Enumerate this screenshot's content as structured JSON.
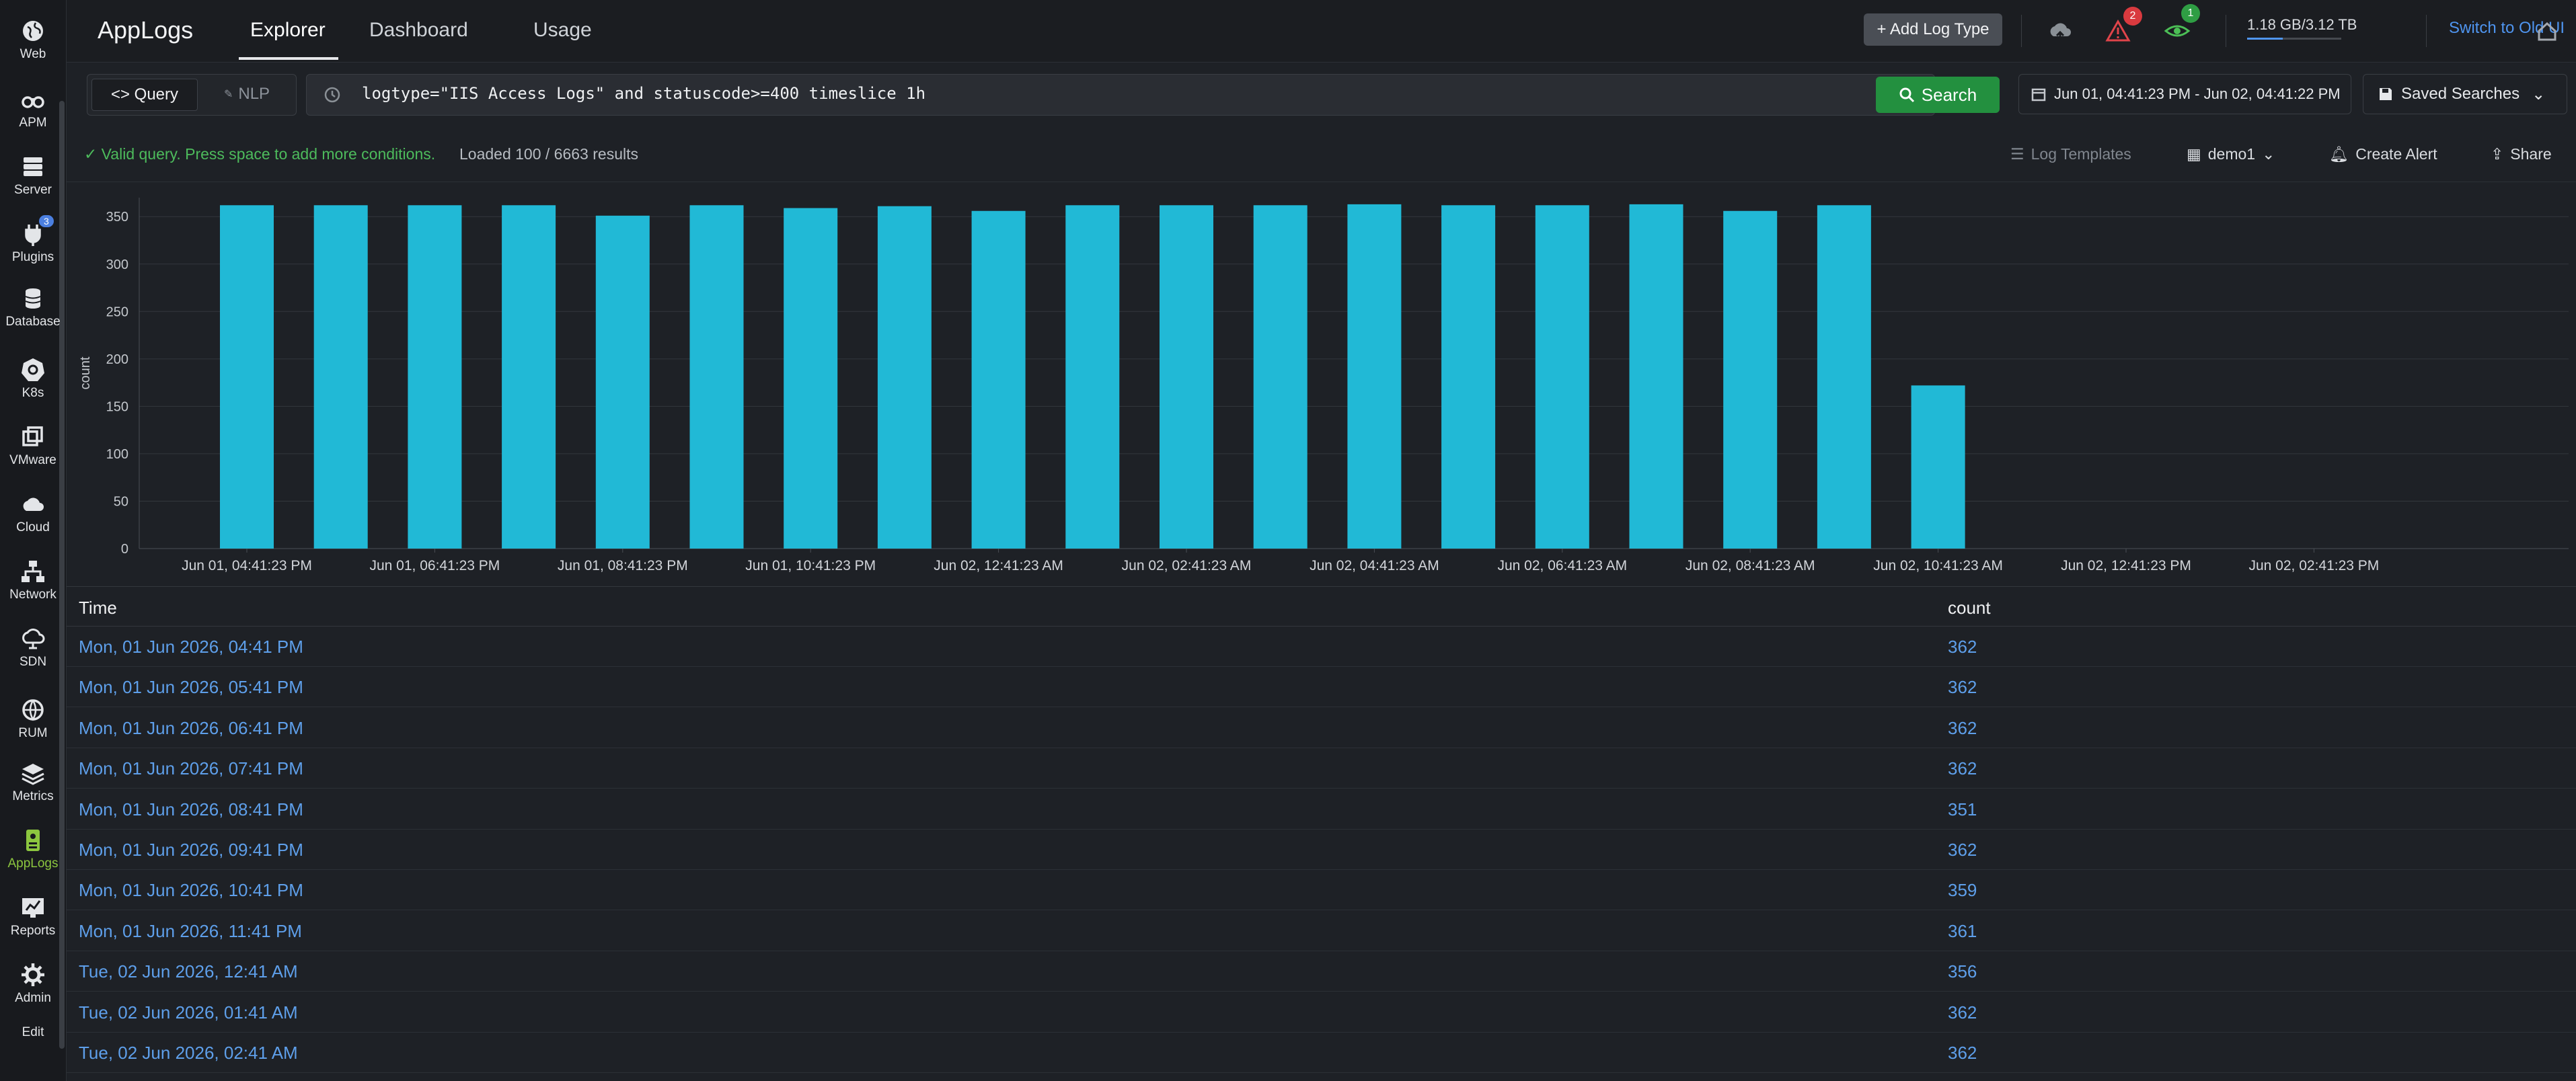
{
  "sidebar": {
    "items": [
      {
        "label": "Web",
        "icon": "globe-icon"
      },
      {
        "label": "APM",
        "icon": "binoculars-icon"
      },
      {
        "label": "Server",
        "icon": "server-icon"
      },
      {
        "label": "Plugins",
        "icon": "plug-icon",
        "badge": "3"
      },
      {
        "label": "Database",
        "icon": "database-icon"
      },
      {
        "label": "K8s",
        "icon": "kubernetes-icon"
      },
      {
        "label": "VMware",
        "icon": "vmware-icon"
      },
      {
        "label": "Cloud",
        "icon": "cloud-icon"
      },
      {
        "label": "Network",
        "icon": "network-icon"
      },
      {
        "label": "SDN",
        "icon": "sdn-cloud-icon"
      },
      {
        "label": "RUM",
        "icon": "rum-globe-icon"
      },
      {
        "label": "Metrics",
        "icon": "layers-icon"
      },
      {
        "label": "AppLogs",
        "icon": "applogs-icon",
        "active": true
      },
      {
        "label": "Reports",
        "icon": "reports-icon"
      },
      {
        "label": "Admin",
        "icon": "gear-icon"
      },
      {
        "label": "Edit"
      }
    ]
  },
  "header": {
    "title": "AppLogs",
    "tabs": [
      {
        "label": "Explorer",
        "active": true
      },
      {
        "label": "Dashboard"
      },
      {
        "label": "Usage"
      }
    ],
    "add_log_type": "+ Add Log Type",
    "alerts_badge": "2",
    "watch_badge": "1",
    "storage": "1.18 GB/3.12 TB",
    "storage_fraction": 0.38,
    "switch_old_ui": "Switch to Old UI"
  },
  "query": {
    "mode_query": "<> Query",
    "mode_nlp": "NLP",
    "text": "logtype=\"IIS Access Logs\" and statuscode>=400 timeslice 1h",
    "search_label": "Search",
    "date_range": "Jun 01, 04:41:23 PM - Jun 02, 04:41:22 PM",
    "saved_searches": "Saved Searches"
  },
  "status": {
    "valid_msg": "Valid query. Press space to add more conditions.",
    "loaded": "Loaded 100 / 6663 results",
    "log_templates": "Log Templates",
    "workspace": "demo1",
    "create_alert": "Create Alert",
    "share": "Share"
  },
  "colors": {
    "bar": "#21b9d6",
    "link": "#5e9fea",
    "accent": "#23903f"
  },
  "chart_data": {
    "type": "bar",
    "ylabel": "count",
    "ylim": [
      0,
      370
    ],
    "yticks": [
      0,
      50,
      100,
      150,
      200,
      250,
      300,
      350
    ],
    "grid": true,
    "xtick_labels": [
      "Jun 01, 04:41:23 PM",
      "Jun 01, 06:41:23 PM",
      "Jun 01, 08:41:23 PM",
      "Jun 01, 10:41:23 PM",
      "Jun 02, 12:41:23 AM",
      "Jun 02, 02:41:23 AM",
      "Jun 02, 04:41:23 AM",
      "Jun 02, 06:41:23 AM",
      "Jun 02, 08:41:23 AM",
      "Jun 02, 10:41:23 AM",
      "Jun 02, 12:41:23 PM",
      "Jun 02, 02:41:23 PM"
    ],
    "hours_span": 26,
    "values": [
      362,
      362,
      362,
      362,
      351,
      362,
      359,
      361,
      356,
      362,
      362,
      362,
      363,
      362,
      362,
      363,
      356,
      362,
      172
    ]
  },
  "table": {
    "columns": [
      "Time",
      "count"
    ],
    "rows": [
      [
        "Mon, 01 Jun 2026, 04:41 PM",
        "362"
      ],
      [
        "Mon, 01 Jun 2026, 05:41 PM",
        "362"
      ],
      [
        "Mon, 01 Jun 2026, 06:41 PM",
        "362"
      ],
      [
        "Mon, 01 Jun 2026, 07:41 PM",
        "362"
      ],
      [
        "Mon, 01 Jun 2026, 08:41 PM",
        "351"
      ],
      [
        "Mon, 01 Jun 2026, 09:41 PM",
        "362"
      ],
      [
        "Mon, 01 Jun 2026, 10:41 PM",
        "359"
      ],
      [
        "Mon, 01 Jun 2026, 11:41 PM",
        "361"
      ],
      [
        "Tue, 02 Jun 2026, 12:41 AM",
        "356"
      ],
      [
        "Tue, 02 Jun 2026, 01:41 AM",
        "362"
      ],
      [
        "Tue, 02 Jun 2026, 02:41 AM",
        "362"
      ]
    ]
  }
}
